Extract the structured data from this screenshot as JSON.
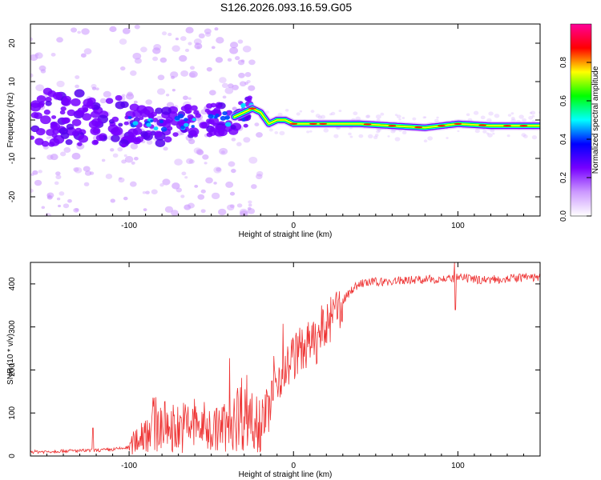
{
  "title": "S126.2026.093.16.59.G05",
  "chart_data": [
    {
      "type": "heatmap",
      "title": "S126.2026.093.16.59.G05",
      "xlabel": "Height of straight line (km)",
      "ylabel": "Frequency (Hz)",
      "xlim": [
        -160,
        150
      ],
      "ylim": [
        -25,
        25
      ],
      "x_ticks": [
        -100,
        0,
        100
      ],
      "x_tick_labels": [
        "-100",
        "0",
        "100"
      ],
      "y_ticks": [
        -20,
        -10,
        0,
        10,
        20
      ],
      "y_tick_labels": [
        "-20",
        "-10",
        "0",
        "10",
        "20"
      ],
      "colorbar": {
        "label": "Normalized spectral amplitude",
        "range": [
          0,
          1
        ],
        "ticks": [
          0.0,
          0.2,
          0.4,
          0.6,
          0.8
        ],
        "tick_labels": [
          "0.0",
          "0.2",
          "0.4",
          "0.6",
          "0.8"
        ],
        "colors": [
          "#ffffff",
          "#cc99ff",
          "#7700ff",
          "#0000ff",
          "#00ffff",
          "#00ff00",
          "#ffff00",
          "#ff0000",
          "#ff0099"
        ]
      },
      "ridge": {
        "x": [
          -160,
          -140,
          -120,
          -100,
          -80,
          -60,
          -40,
          -30,
          -25,
          -20,
          -15,
          -10,
          -5,
          0,
          10,
          20,
          40,
          60,
          80,
          100,
          120,
          150
        ],
        "peak_frequency": [
          0,
          1,
          0,
          -1,
          -2,
          0,
          0,
          2,
          3,
          2,
          -1,
          0,
          0,
          -1,
          -1,
          -1,
          -1,
          -1.5,
          -2,
          -1,
          -1.5,
          -1.5
        ]
      },
      "grid": false
    },
    {
      "type": "line",
      "xlabel": "Height of straight line (km)",
      "ylabel": "SNR (10 * v/v)",
      "xlim": [
        -160,
        150
      ],
      "ylim": [
        0,
        450
      ],
      "x_ticks": [
        -100,
        0,
        100
      ],
      "x_tick_labels": [
        "-100",
        "0",
        "100"
      ],
      "y_ticks": [
        0,
        100,
        200,
        300,
        400
      ],
      "y_tick_labels": [
        "0",
        "100",
        "200",
        "300",
        "400"
      ],
      "line_color": "#ee3333",
      "series": [
        {
          "x": [
            -160,
            -150,
            -140,
            -130,
            -120,
            -110,
            -100,
            -95,
            -90,
            -85,
            -80,
            -70,
            -60,
            -50,
            -40,
            -35,
            -30,
            -25,
            -20,
            -15,
            -10,
            -5,
            0,
            5,
            10,
            15,
            20,
            25,
            30,
            35,
            40,
            50,
            60,
            70,
            80,
            90,
            95,
            100,
            110,
            120,
            130,
            140,
            150
          ],
          "values": [
            10,
            10,
            12,
            12,
            13,
            15,
            20,
            40,
            60,
            75,
            70,
            65,
            75,
            60,
            70,
            90,
            110,
            95,
            85,
            110,
            180,
            200,
            230,
            250,
            260,
            270,
            300,
            330,
            360,
            385,
            400,
            405,
            405,
            410,
            410,
            412,
            410,
            415,
            410,
            410,
            412,
            415,
            415
          ]
        }
      ],
      "grid": false
    }
  ]
}
